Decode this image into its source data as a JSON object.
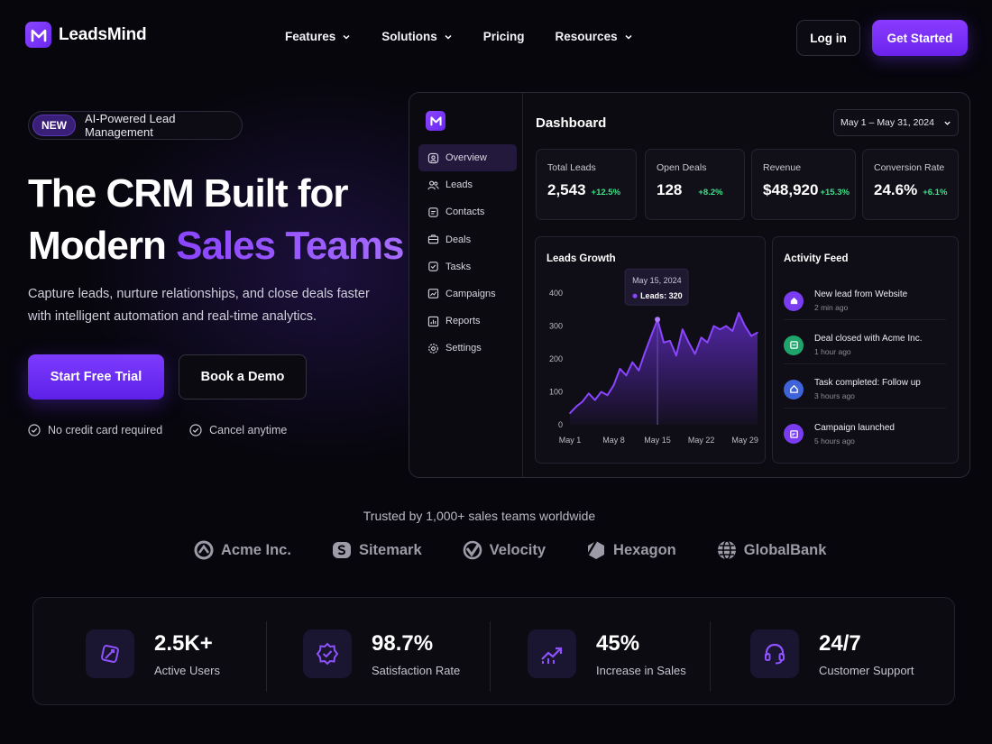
{
  "brand": {
    "name": "LeadsMind"
  },
  "nav": {
    "items": [
      {
        "label": "Features",
        "dropdown": true
      },
      {
        "label": "Solutions",
        "dropdown": true
      },
      {
        "label": "Pricing",
        "dropdown": false
      },
      {
        "label": "Resources",
        "dropdown": true
      }
    ],
    "login_label": "Log in",
    "get_started_label": "Get Started"
  },
  "hero": {
    "badge_new": "NEW",
    "badge_text": "AI-Powered Lead Management",
    "title_line1": "The CRM Built for",
    "title_line2_plain": "Modern ",
    "title_line2_accent": "Sales Teams",
    "subtitle": "Capture leads, nurture relationships, and close deals faster with intelligent automation and real-time analytics.",
    "primary_cta": "Start Free Trial",
    "secondary_cta": "Book a Demo",
    "checks": [
      "No credit card required",
      "Cancel anytime"
    ]
  },
  "dashboard": {
    "title": "Dashboard",
    "date_range": "May 1 – May 31, 2024",
    "menu": [
      {
        "label": "Overview",
        "icon": "overview-icon",
        "active": true
      },
      {
        "label": "Leads",
        "icon": "users-icon",
        "active": false
      },
      {
        "label": "Contacts",
        "icon": "contacts-icon",
        "active": false
      },
      {
        "label": "Deals",
        "icon": "deals-icon",
        "active": false
      },
      {
        "label": "Tasks",
        "icon": "tasks-icon",
        "active": false
      },
      {
        "label": "Campaigns",
        "icon": "campaigns-icon",
        "active": false
      },
      {
        "label": "Reports",
        "icon": "reports-icon",
        "active": false
      },
      {
        "label": "Settings",
        "icon": "settings-icon",
        "active": false
      }
    ],
    "stats": [
      {
        "label": "Total Leads",
        "value": "2,543",
        "change": "+12.5%"
      },
      {
        "label": "Open Deals",
        "value": "128",
        "change": "+8.2%"
      },
      {
        "label": "Revenue",
        "value": "$48,920",
        "change": "+15.3%"
      },
      {
        "label": "Conversion Rate",
        "value": "24.6%",
        "change": "+6.1%"
      }
    ],
    "activity": {
      "title": "Activity Feed",
      "items": [
        {
          "text": "New lead from Website",
          "time": "2 min ago",
          "color": "#7a3cf0"
        },
        {
          "text": "Deal closed with Acme Inc.",
          "time": "1 hour ago",
          "color": "#1fa56b"
        },
        {
          "text": "Task completed: Follow up",
          "time": "3 hours ago",
          "color": "#3f63d8"
        },
        {
          "text": "Campaign launched",
          "time": "5 hours ago",
          "color": "#7a3cf0"
        }
      ]
    }
  },
  "chart_data": {
    "type": "area",
    "title": "Leads Growth",
    "x": [
      "May 1",
      "May 2",
      "May 3",
      "May 4",
      "May 5",
      "May 6",
      "May 7",
      "May 8",
      "May 9",
      "May 10",
      "May 11",
      "May 12",
      "May 13",
      "May 14",
      "May 15",
      "May 16",
      "May 17",
      "May 18",
      "May 19",
      "May 20",
      "May 21",
      "May 22",
      "May 23",
      "May 24",
      "May 25",
      "May 26",
      "May 27",
      "May 28",
      "May 29",
      "May 30",
      "May 31"
    ],
    "values": [
      35,
      55,
      70,
      95,
      75,
      100,
      90,
      120,
      170,
      150,
      190,
      165,
      220,
      270,
      320,
      250,
      255,
      210,
      290,
      250,
      215,
      265,
      250,
      300,
      290,
      300,
      285,
      340,
      300,
      270,
      280
    ],
    "xticks": [
      "May 1",
      "May 8",
      "May 15",
      "May 22",
      "May 29"
    ],
    "yticks": [
      0,
      100,
      200,
      300,
      400
    ],
    "ylim": [
      0,
      400
    ],
    "tooltip": {
      "date": "May 15, 2024",
      "label": "Leads: 320"
    },
    "colors": {
      "line": "#8b45ff",
      "fill": "#6a2fd8"
    }
  },
  "trusted": {
    "text": "Trusted by 1,000+ sales teams worldwide",
    "logos": [
      {
        "name": "Acme Inc.",
        "icon": "acme-logo-icon"
      },
      {
        "name": "Sitemark",
        "icon": "sitemark-logo-icon"
      },
      {
        "name": "Velocity",
        "icon": "velocity-logo-icon"
      },
      {
        "name": "Hexagon",
        "icon": "hexagon-logo-icon"
      },
      {
        "name": "GlobalBank",
        "icon": "globe-logo-icon"
      }
    ]
  },
  "stats_bar": [
    {
      "value": "2.5K+",
      "label": "Active Users",
      "icon": "user-plus-icon"
    },
    {
      "value": "98.7%",
      "label": "Satisfaction Rate",
      "icon": "badge-check-icon"
    },
    {
      "value": "45%",
      "label": "Increase in Sales",
      "icon": "trending-up-icon"
    },
    {
      "value": "24/7",
      "label": "Customer Support",
      "icon": "headset-icon"
    }
  ],
  "colors": {
    "accent": "#7b35ff",
    "positive": "#3ee08a",
    "background": "#07060d"
  }
}
